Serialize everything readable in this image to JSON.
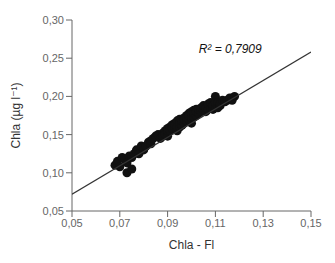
{
  "chart_data": {
    "type": "scatter",
    "title": "",
    "xlabel": "Chla - Fl",
    "ylabel": "Chla (µg l⁻¹)",
    "xlim": [
      0.05,
      0.15
    ],
    "ylim": [
      0.05,
      0.3
    ],
    "xticks": [
      {
        "value": 0.05,
        "label": "0,05"
      },
      {
        "value": 0.07,
        "label": "0,07"
      },
      {
        "value": 0.09,
        "label": "0,09"
      },
      {
        "value": 0.11,
        "label": "0,11"
      },
      {
        "value": 0.13,
        "label": "0,13"
      },
      {
        "value": 0.15,
        "label": "0,15"
      }
    ],
    "yticks": [
      {
        "value": 0.05,
        "label": "0,05"
      },
      {
        "value": 0.1,
        "label": "0,10"
      },
      {
        "value": 0.15,
        "label": "0,15"
      },
      {
        "value": 0.2,
        "label": "0,20"
      },
      {
        "value": 0.25,
        "label": "0,25"
      },
      {
        "value": 0.3,
        "label": "0,30"
      }
    ],
    "grid": false,
    "annotations": [
      {
        "text": "R² = 0,7909",
        "x": 0.103,
        "y": 0.263
      }
    ],
    "series": [
      {
        "type": "scatter",
        "marker": "circle",
        "color": "#111111",
        "x": [
          0.068,
          0.069,
          0.07,
          0.071,
          0.072,
          0.073,
          0.073,
          0.074,
          0.075,
          0.075,
          0.076,
          0.077,
          0.077,
          0.078,
          0.079,
          0.08,
          0.081,
          0.082,
          0.083,
          0.083,
          0.084,
          0.085,
          0.086,
          0.087,
          0.088,
          0.088,
          0.089,
          0.089,
          0.09,
          0.09,
          0.09,
          0.091,
          0.091,
          0.092,
          0.092,
          0.092,
          0.093,
          0.093,
          0.093,
          0.094,
          0.094,
          0.094,
          0.095,
          0.095,
          0.095,
          0.095,
          0.096,
          0.096,
          0.096,
          0.097,
          0.097,
          0.097,
          0.098,
          0.098,
          0.098,
          0.099,
          0.099,
          0.099,
          0.1,
          0.1,
          0.1,
          0.1,
          0.101,
          0.101,
          0.101,
          0.102,
          0.102,
          0.102,
          0.103,
          0.103,
          0.104,
          0.104,
          0.105,
          0.105,
          0.106,
          0.106,
          0.107,
          0.107,
          0.108,
          0.108,
          0.109,
          0.109,
          0.11,
          0.11,
          0.11,
          0.111,
          0.111,
          0.112,
          0.112,
          0.113,
          0.114,
          0.115,
          0.116,
          0.117,
          0.118
        ],
        "values": [
          0.11,
          0.115,
          0.108,
          0.12,
          0.118,
          0.113,
          0.1,
          0.122,
          0.105,
          0.12,
          0.125,
          0.13,
          0.128,
          0.125,
          0.135,
          0.13,
          0.135,
          0.14,
          0.138,
          0.142,
          0.145,
          0.148,
          0.15,
          0.145,
          0.152,
          0.148,
          0.155,
          0.15,
          0.148,
          0.158,
          0.155,
          0.16,
          0.155,
          0.162,
          0.163,
          0.158,
          0.165,
          0.16,
          0.163,
          0.168,
          0.155,
          0.16,
          0.165,
          0.17,
          0.16,
          0.165,
          0.17,
          0.162,
          0.168,
          0.172,
          0.165,
          0.17,
          0.175,
          0.168,
          0.172,
          0.178,
          0.17,
          0.175,
          0.18,
          0.165,
          0.172,
          0.178,
          0.182,
          0.173,
          0.178,
          0.183,
          0.175,
          0.18,
          0.178,
          0.183,
          0.18,
          0.185,
          0.182,
          0.188,
          0.18,
          0.185,
          0.183,
          0.19,
          0.185,
          0.192,
          0.183,
          0.188,
          0.2,
          0.185,
          0.192,
          0.185,
          0.192,
          0.188,
          0.19,
          0.195,
          0.193,
          0.195,
          0.198,
          0.195,
          0.2
        ]
      },
      {
        "type": "line",
        "line_style": "solid",
        "color": "#333333",
        "x": [
          0.05,
          0.15
        ],
        "values": [
          0.072,
          0.258
        ]
      }
    ]
  }
}
